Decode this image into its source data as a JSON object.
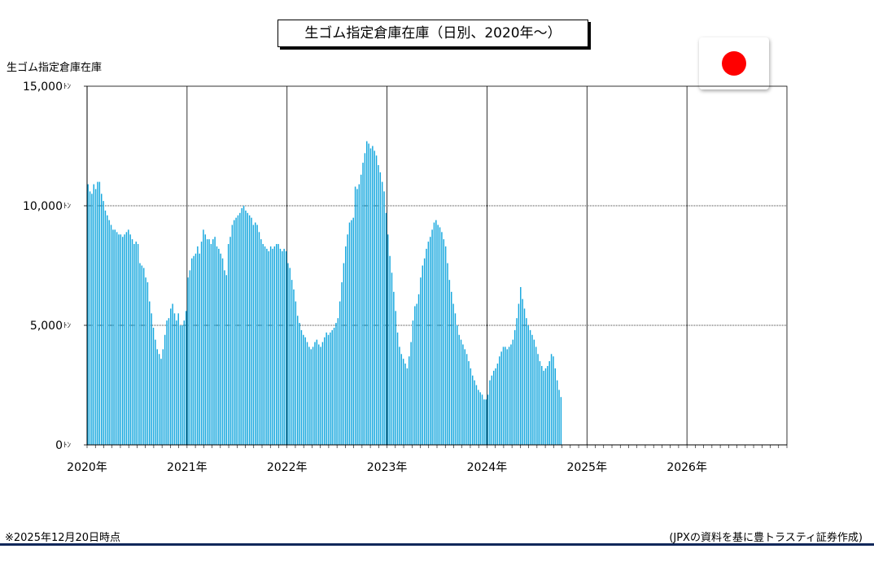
{
  "title": "生ゴム指定倉庫在庫（日別、2020年～）",
  "y_unit_label": "生ゴム指定倉庫在庫",
  "footnote": "※2025年12月20日時点",
  "source": "(JPXの資料を基に豊トラスティ証券作成)",
  "flag_icon": "japan-flag-icon",
  "colors": {
    "bar": "#15a7de",
    "bar_edge": "#0b86b5",
    "flag_red": "#ff0000",
    "footer_rule": "#10275a"
  },
  "chart_data": {
    "type": "bar",
    "title": "生ゴム指定倉庫在庫（日別、2020年～）",
    "ylabel": "生ゴム指定倉庫在庫",
    "y_unit": "ﾄﾝ",
    "ylim": [
      0,
      15000
    ],
    "y_ticks": [
      0,
      5000,
      10000,
      15000
    ],
    "y_tick_labels": [
      "0ﾄﾝ",
      "5,000ﾄﾝ",
      "10,000ﾄﾝ",
      "15,000ﾄﾝ"
    ],
    "x_ticks": [
      "2020年",
      "2021年",
      "2022年",
      "2023年",
      "2024年",
      "2025年",
      "2026年"
    ],
    "x_range_years": [
      2020,
      2027
    ],
    "grid": true,
    "periods_per_year": 52,
    "start": "2020年",
    "values": [
      10900,
      10600,
      10500,
      10900,
      10700,
      11000,
      11000,
      10500,
      10200,
      9800,
      9600,
      9400,
      9200,
      9000,
      9000,
      8900,
      8800,
      8800,
      8700,
      8800,
      8900,
      9000,
      8800,
      8600,
      8400,
      8500,
      8400,
      7600,
      7500,
      7400,
      7000,
      6800,
      6000,
      5500,
      4900,
      4400,
      4000,
      3800,
      3600,
      4000,
      4600,
      5200,
      5300,
      5700,
      5900,
      5500,
      5200,
      5500,
      5000,
      5000,
      5200,
      5600,
      7000,
      7300,
      7800,
      7900,
      8000,
      8300,
      8000,
      8500,
      9000,
      8800,
      8600,
      8600,
      8400,
      8600,
      8700,
      8300,
      8200,
      8000,
      7800,
      7300,
      7100,
      8400,
      8700,
      9200,
      9400,
      9500,
      9600,
      9700,
      9900,
      10000,
      9800,
      9700,
      9600,
      9500,
      9200,
      9300,
      9200,
      8900,
      8600,
      8400,
      8300,
      8200,
      8100,
      8300,
      8200,
      8300,
      8400,
      8400,
      8200,
      8100,
      8200,
      8100,
      7600,
      7400,
      6900,
      6500,
      6000,
      5400,
      5100,
      4800,
      4600,
      4500,
      4300,
      4100,
      4000,
      4100,
      4300,
      4400,
      4200,
      4100,
      4300,
      4500,
      4700,
      4600,
      4700,
      4800,
      4900,
      5100,
      5300,
      6000,
      6800,
      7600,
      8300,
      8800,
      9300,
      9400,
      9500,
      10800,
      10700,
      10900,
      11300,
      11800,
      12200,
      12700,
      12600,
      12400,
      12500,
      12300,
      12100,
      11700,
      11400,
      11000,
      10600,
      9700,
      8800,
      7900,
      7200,
      6400,
      5600,
      4700,
      4100,
      3800,
      3600,
      3400,
      3200,
      3700,
      4300,
      5200,
      5800,
      5900,
      6300,
      7000,
      7500,
      7800,
      8200,
      8500,
      8700,
      9000,
      9300,
      9400,
      9200,
      9100,
      8900,
      8600,
      8300,
      7600,
      6900,
      6400,
      5900,
      5500,
      5000,
      4600,
      4400,
      4200,
      4000,
      3800,
      3500,
      3200,
      2900,
      2700,
      2500,
      2300,
      2200,
      2100,
      1900,
      1900,
      2100,
      2700,
      2900,
      3100,
      3200,
      3400,
      3700,
      3900,
      4100,
      4100,
      4000,
      4100,
      4200,
      4400,
      4800,
      5300,
      5900,
      6600,
      6100,
      5700,
      5300,
      5000,
      4800,
      4600,
      4400,
      4100,
      3800,
      3500,
      3300,
      3100,
      3200,
      3300,
      3500,
      3800,
      3700,
      3200,
      2700,
      2300,
      2000
    ]
  }
}
